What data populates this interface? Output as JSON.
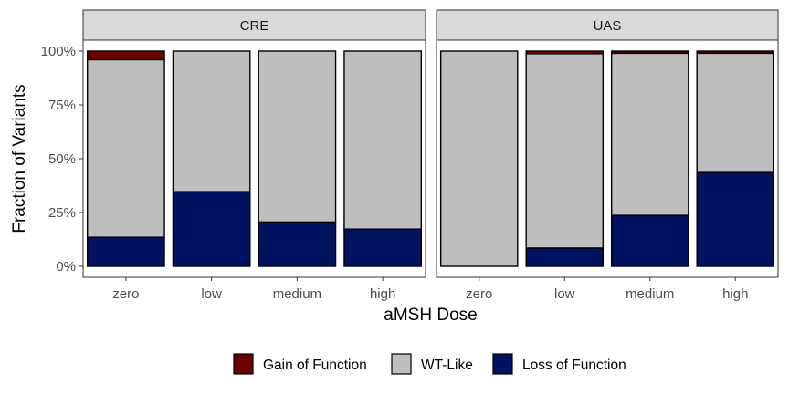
{
  "chart_data": {
    "type": "bar",
    "stacked": true,
    "facets": [
      {
        "title": "CRE",
        "categories": [
          "zero",
          "low",
          "medium",
          "high"
        ],
        "series": [
          {
            "name": "Loss of Function",
            "values": [
              0.135,
              0.347,
              0.206,
              0.173
            ]
          },
          {
            "name": "WT-Like",
            "values": [
              0.825,
              0.653,
              0.794,
              0.827
            ]
          },
          {
            "name": "Gain of Function",
            "values": [
              0.04,
              0.0,
              0.0,
              0.0
            ]
          }
        ]
      },
      {
        "title": "UAS",
        "categories": [
          "zero",
          "low",
          "medium",
          "high"
        ],
        "series": [
          {
            "name": "Loss of Function",
            "values": [
              0.0,
              0.085,
              0.237,
              0.436
            ]
          },
          {
            "name": "WT-Like",
            "values": [
              1.0,
              0.903,
              0.753,
              0.554
            ]
          },
          {
            "name": "Gain of Function",
            "values": [
              0.0,
              0.012,
              0.01,
              0.01
            ]
          }
        ]
      }
    ],
    "xlabel": "aMSH Dose",
    "ylabel": "Fraction of Variants",
    "ylim": [
      0,
      1
    ],
    "yticks": [
      0,
      0.25,
      0.5,
      0.75,
      1
    ],
    "ytick_labels": [
      "0%",
      "25%",
      "50%",
      "75%",
      "100%"
    ],
    "grid": false,
    "legend": {
      "position": "bottom",
      "entries": [
        "Gain of Function",
        "WT-Like",
        "Loss of Function"
      ]
    },
    "colors": {
      "Gain of Function": "#6a0000",
      "WT-Like": "#bebebe",
      "Loss of Function": "#001260"
    }
  }
}
